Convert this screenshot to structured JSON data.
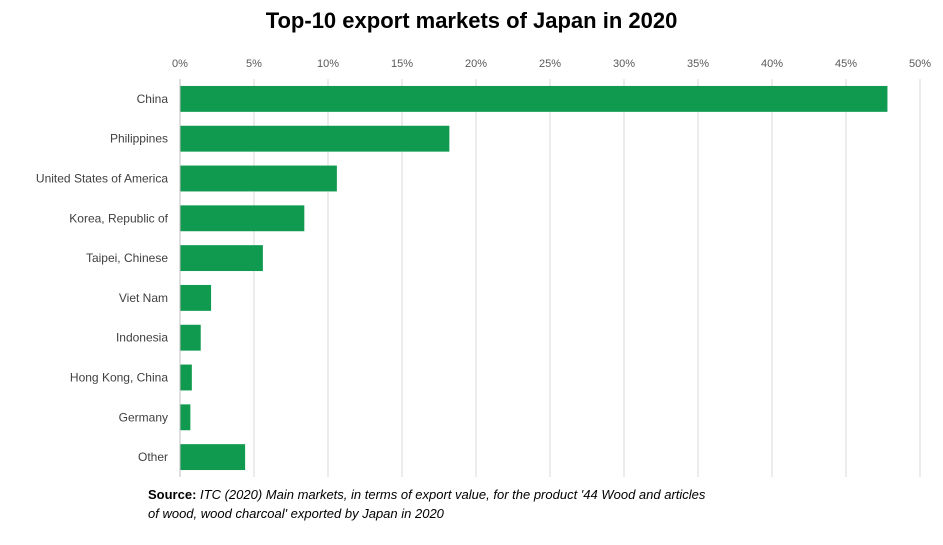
{
  "chart_data": {
    "type": "bar",
    "orientation": "horizontal",
    "title": "Top-10 export markets of Japan in 2020",
    "categories": [
      "China",
      "Philippines",
      "United States of America",
      "Korea, Republic of",
      "Taipei, Chinese",
      "Viet Nam",
      "Indonesia",
      "Hong Kong, China",
      "Germany",
      "Other"
    ],
    "values": [
      47.8,
      18.2,
      10.6,
      8.4,
      5.6,
      2.1,
      1.4,
      0.8,
      0.7,
      4.4
    ],
    "unit": "%",
    "xlim": [
      0,
      50
    ],
    "x_ticks": [
      0,
      5,
      10,
      15,
      20,
      25,
      30,
      35,
      40,
      45,
      50
    ],
    "x_tick_labels": [
      "0%",
      "5%",
      "10%",
      "15%",
      "20%",
      "25%",
      "30%",
      "35%",
      "40%",
      "45%",
      "50%"
    ],
    "x_axis_position": "top",
    "grid": true,
    "legend": "none",
    "bar_color": "#0f9a4f"
  },
  "source": {
    "label": "Source:",
    "text": "ITC (2020) Main markets, in terms of export value, for the product '44 Wood and articles of wood, wood charcoal' exported by Japan in 2020"
  }
}
